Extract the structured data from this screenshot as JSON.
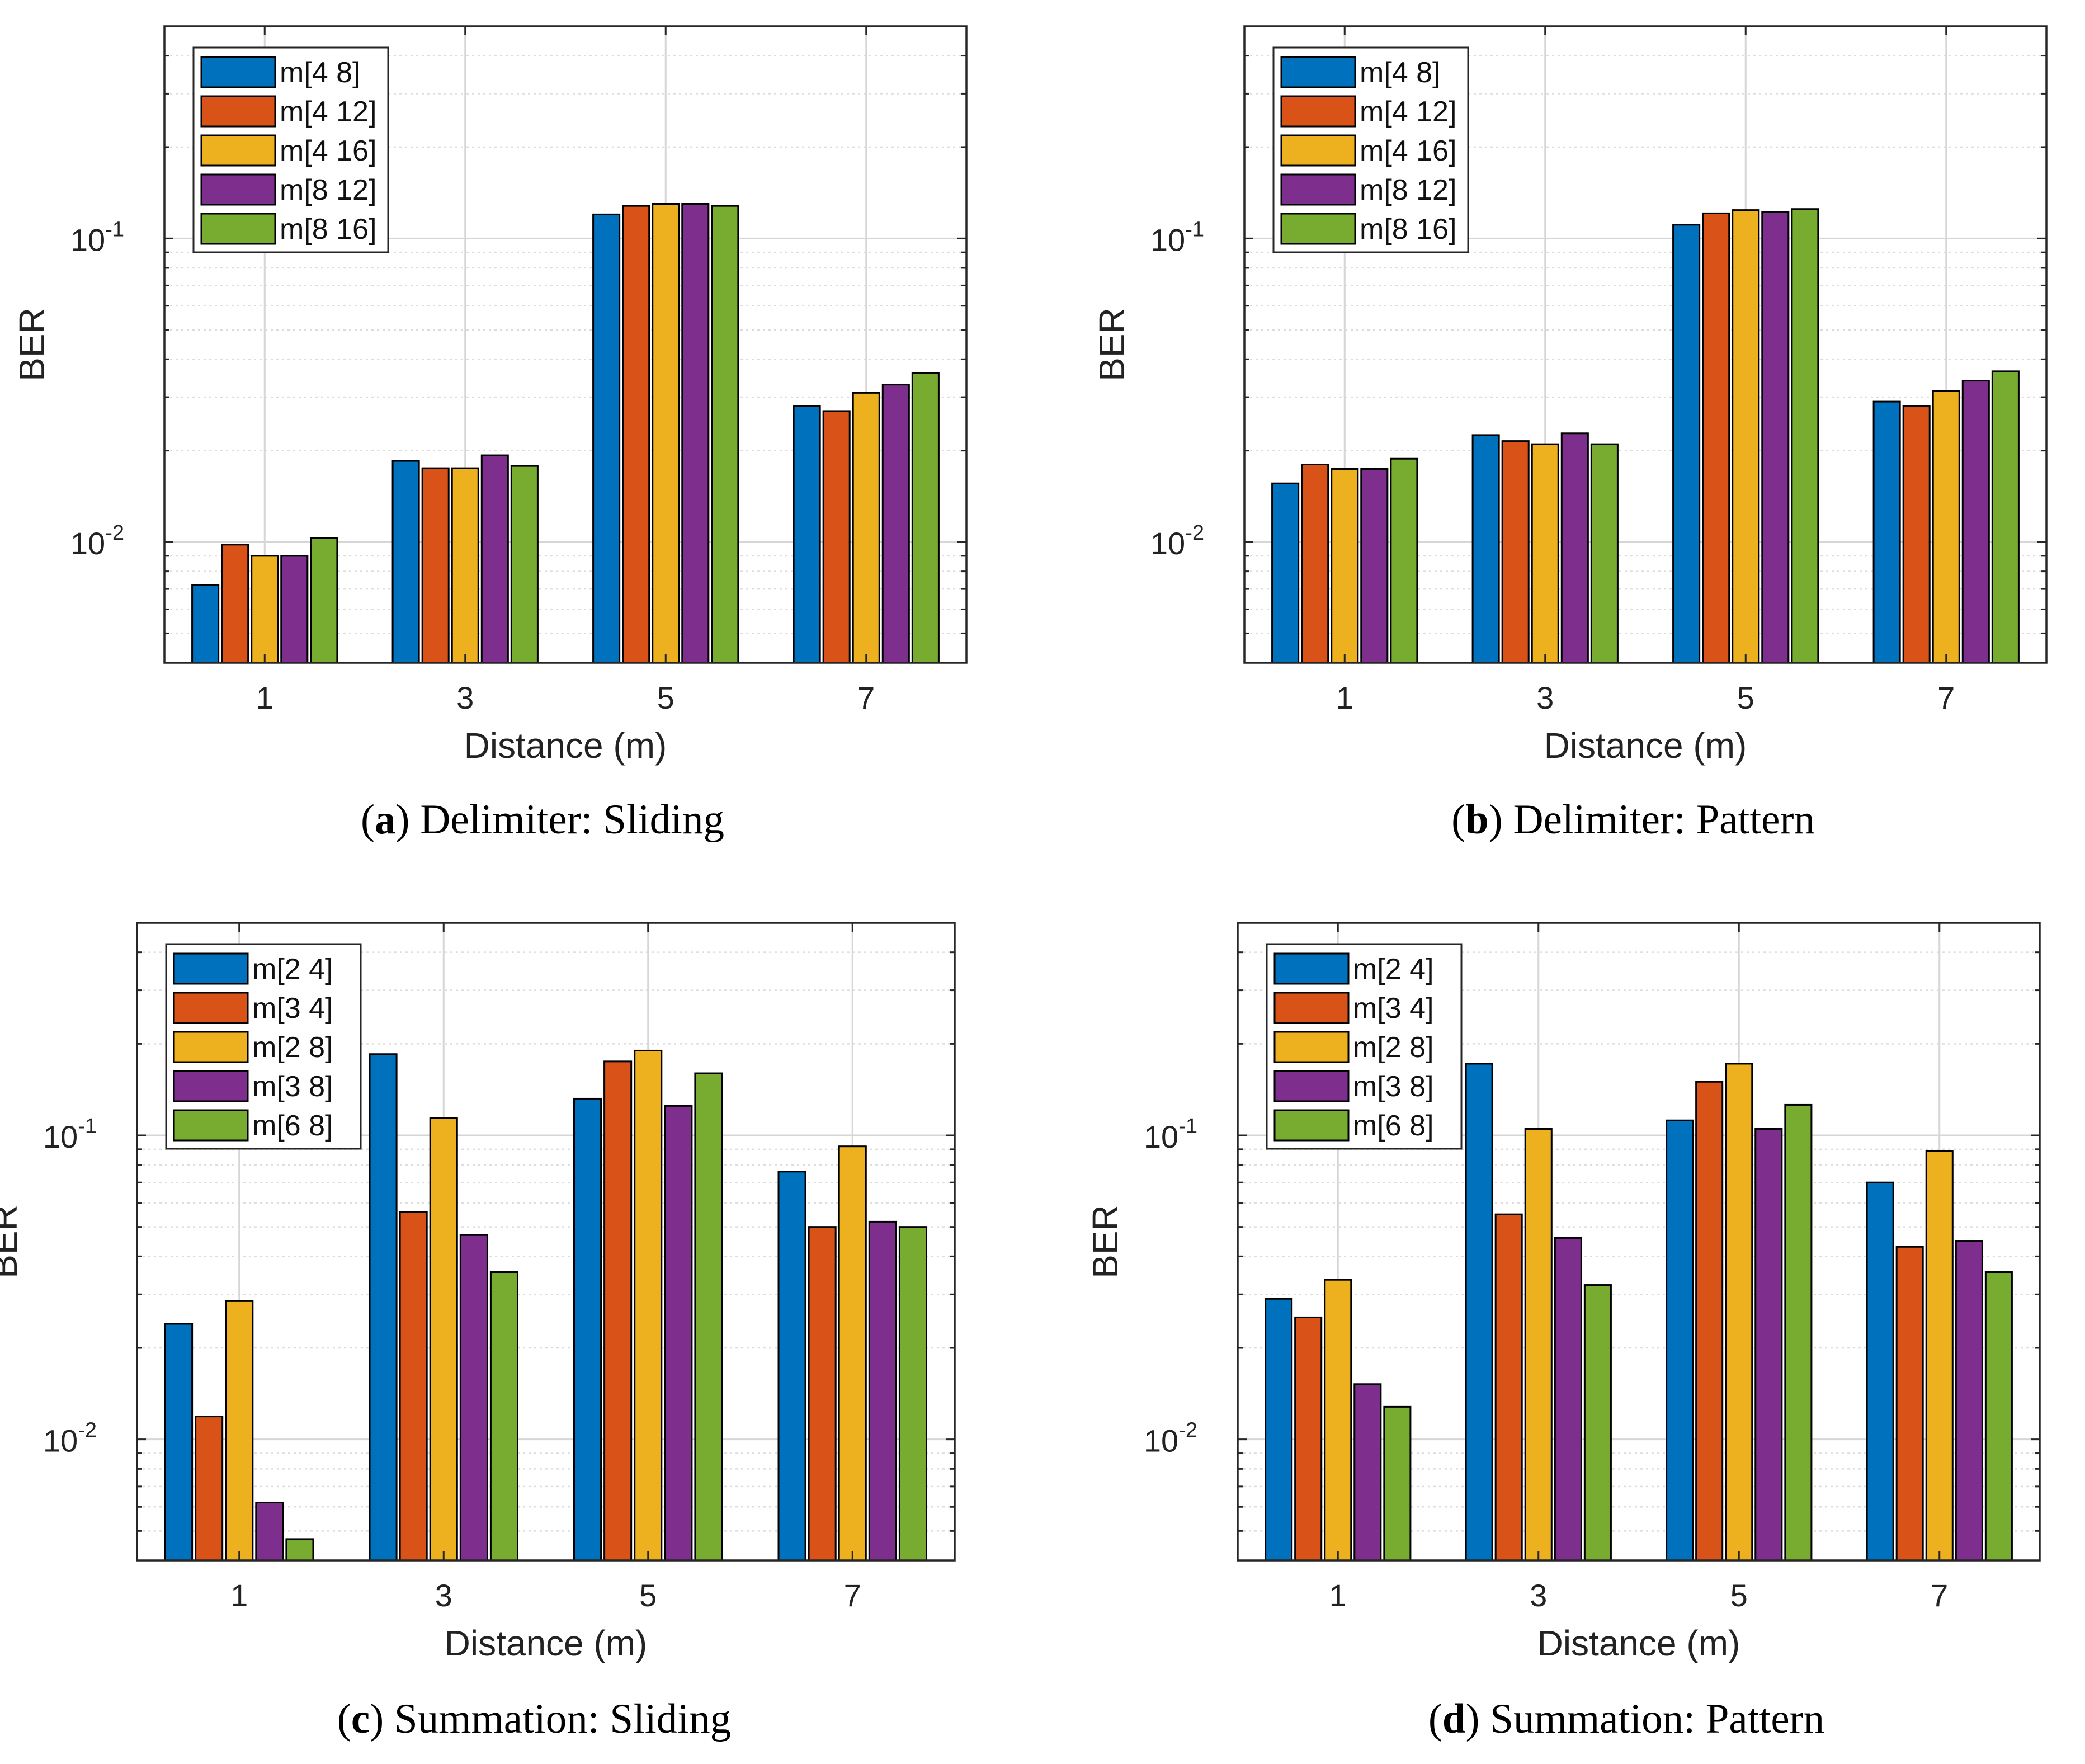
{
  "colors": [
    "#0072BD",
    "#D95319",
    "#EDB120",
    "#7E2F8E",
    "#77AC30"
  ],
  "chart_data": [
    {
      "type": "bar",
      "caption_letter": "a",
      "caption_text": "Delimiter: Sliding",
      "categories": [
        "1",
        "3",
        "5",
        "7"
      ],
      "xlabel": "Distance (m)",
      "ylabel": "BER",
      "yscale": "log",
      "ylim": [
        0.004,
        0.5
      ],
      "ytick_labels": [
        {
          "base": "10",
          "exp": "-2"
        },
        {
          "base": "10",
          "exp": "-1"
        }
      ],
      "grid": true,
      "legend_position": "top-left",
      "series": [
        {
          "name": "m[4 8]",
          "values": [
            0.0072,
            0.0185,
            0.12,
            0.028
          ]
        },
        {
          "name": "m[4 12]",
          "values": [
            0.0098,
            0.0175,
            0.128,
            0.027
          ]
        },
        {
          "name": "m[4 16]",
          "values": [
            0.009,
            0.0175,
            0.13,
            0.031
          ]
        },
        {
          "name": "m[8 12]",
          "values": [
            0.009,
            0.0193,
            0.13,
            0.033
          ]
        },
        {
          "name": "m[8 16]",
          "values": [
            0.0103,
            0.0178,
            0.128,
            0.036
          ]
        }
      ]
    },
    {
      "type": "bar",
      "caption_letter": "b",
      "caption_text": "Delimiter: Pattern",
      "categories": [
        "1",
        "3",
        "5",
        "7"
      ],
      "xlabel": "Distance (m)",
      "ylabel": "BER",
      "yscale": "log",
      "ylim": [
        0.004,
        0.5
      ],
      "ytick_labels": [
        {
          "base": "10",
          "exp": "-2"
        },
        {
          "base": "10",
          "exp": "-1"
        }
      ],
      "grid": true,
      "legend_position": "top-left",
      "series": [
        {
          "name": "m[4 8]",
          "values": [
            0.0156,
            0.0225,
            0.111,
            0.029
          ]
        },
        {
          "name": "m[4 12]",
          "values": [
            0.018,
            0.0215,
            0.121,
            0.028
          ]
        },
        {
          "name": "m[4 16]",
          "values": [
            0.0174,
            0.021,
            0.124,
            0.0315
          ]
        },
        {
          "name": "m[8 12]",
          "values": [
            0.0174,
            0.0228,
            0.122,
            0.034
          ]
        },
        {
          "name": "m[8 16]",
          "values": [
            0.0188,
            0.021,
            0.125,
            0.0365
          ]
        }
      ]
    },
    {
      "type": "bar",
      "caption_letter": "c",
      "caption_text": "Summation: Sliding",
      "categories": [
        "1",
        "3",
        "5",
        "7"
      ],
      "xlabel": "Distance (m)",
      "ylabel": "BER",
      "yscale": "log",
      "ylim": [
        0.004,
        0.5
      ],
      "ytick_labels": [
        {
          "base": "10",
          "exp": "-2"
        },
        {
          "base": "10",
          "exp": "-1"
        }
      ],
      "grid": true,
      "legend_position": "top-left",
      "series": [
        {
          "name": "m[2 4]",
          "values": [
            0.024,
            0.185,
            0.132,
            0.076
          ]
        },
        {
          "name": "m[3 4]",
          "values": [
            0.0119,
            0.056,
            0.175,
            0.05
          ]
        },
        {
          "name": "m[2 8]",
          "values": [
            0.0285,
            0.114,
            0.19,
            0.092
          ]
        },
        {
          "name": "m[3 8]",
          "values": [
            0.0062,
            0.047,
            0.125,
            0.052
          ]
        },
        {
          "name": "m[6 8]",
          "values": [
            0.0047,
            0.0355,
            0.16,
            0.05
          ]
        }
      ]
    },
    {
      "type": "bar",
      "caption_letter": "d",
      "caption_text": "Summation: Pattern",
      "categories": [
        "1",
        "3",
        "5",
        "7"
      ],
      "xlabel": "Distance (m)",
      "ylabel": "BER",
      "yscale": "log",
      "ylim": [
        0.004,
        0.5
      ],
      "ytick_labels": [
        {
          "base": "10",
          "exp": "-2"
        },
        {
          "base": "10",
          "exp": "-1"
        }
      ],
      "grid": true,
      "legend_position": "top-left",
      "series": [
        {
          "name": "m[2 4]",
          "values": [
            0.029,
            0.172,
            0.112,
            0.07
          ]
        },
        {
          "name": "m[3 4]",
          "values": [
            0.0252,
            0.055,
            0.15,
            0.043
          ]
        },
        {
          "name": "m[2 8]",
          "values": [
            0.0335,
            0.105,
            0.172,
            0.089
          ]
        },
        {
          "name": "m[3 8]",
          "values": [
            0.0152,
            0.046,
            0.105,
            0.045
          ]
        },
        {
          "name": "m[6 8]",
          "values": [
            0.0128,
            0.0322,
            0.126,
            0.0355
          ]
        }
      ]
    }
  ]
}
